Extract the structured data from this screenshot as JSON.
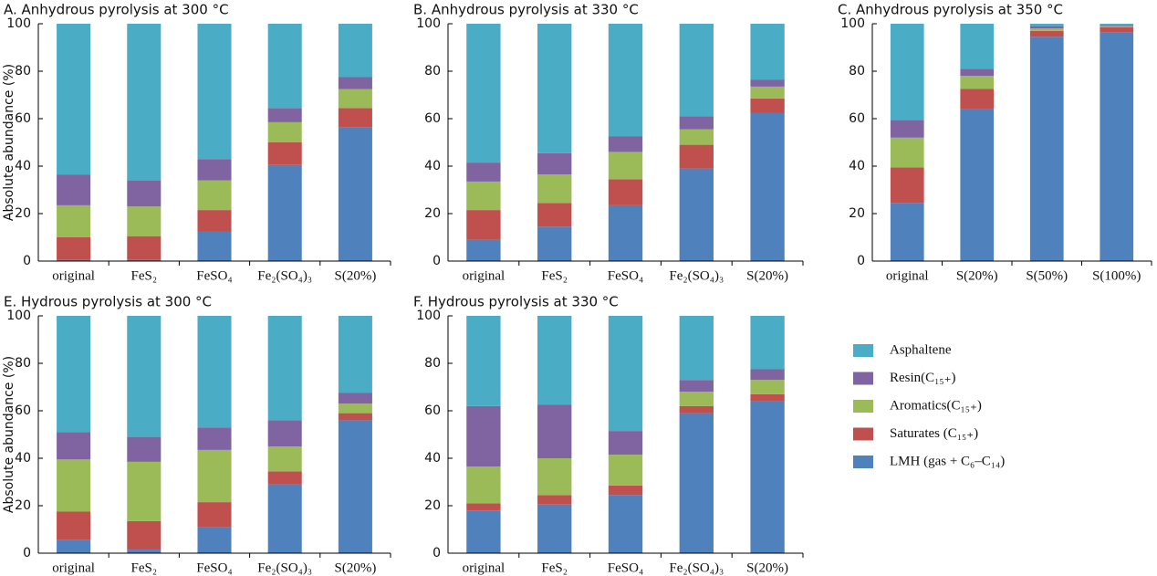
{
  "chart_data": [
    {
      "type": "bar",
      "stacked": true,
      "title": "A. Anhydrous pyrolysis  at 300 °C",
      "ylabel": "Absolute abundance (%)",
      "categories": [
        "original",
        "FeS₂",
        "FeSO₄",
        "Fe₂(SO₄)₃",
        "S(20%)"
      ],
      "series": [
        {
          "name": "LMH (gas + C₆–C₁₄)",
          "color": "#4f81bd",
          "values": [
            0.5,
            0.5,
            12.5,
            40.5,
            56.5
          ]
        },
        {
          "name": "Saturates (C₁₅₊)",
          "color": "#c0504d",
          "values": [
            9.5,
            10,
            9,
            9.5,
            8
          ]
        },
        {
          "name": "Aromatics(C₁₅₊)",
          "color": "#9bbb59",
          "values": [
            13.5,
            12.5,
            12.5,
            8.5,
            8
          ]
        },
        {
          "name": "Resin(C₁₅₊)",
          "color": "#8064a2",
          "values": [
            13,
            11,
            9,
            6,
            5
          ]
        },
        {
          "name": "Asphaltene",
          "color": "#4bacc6",
          "values": [
            63.5,
            66,
            57,
            35.5,
            22.5
          ]
        }
      ],
      "ylim": [
        0,
        100
      ],
      "yticks": [
        0,
        20,
        40,
        60,
        80,
        100
      ]
    },
    {
      "type": "bar",
      "stacked": true,
      "title": "B. Anhydrous pyrolysis  at 330 °C",
      "categories": [
        "original",
        "FeS₂",
        "FeSO₄",
        "Fe₂(SO₄)₃",
        "S(20%)"
      ],
      "series": [
        {
          "name": "LMH (gas + C₆–C₁₄)",
          "color": "#4f81bd",
          "values": [
            9,
            14.5,
            23.5,
            39,
            62.5
          ]
        },
        {
          "name": "Saturates (C₁₅₊)",
          "color": "#c0504d",
          "values": [
            12.5,
            10,
            11,
            10,
            6
          ]
        },
        {
          "name": "Aromatics(C₁₅₊)",
          "color": "#9bbb59",
          "values": [
            12,
            12,
            11.5,
            6.5,
            5
          ]
        },
        {
          "name": "Resin(C₁₅₊)",
          "color": "#8064a2",
          "values": [
            8,
            9,
            6.5,
            5.5,
            3
          ]
        },
        {
          "name": "Asphaltene",
          "color": "#4bacc6",
          "values": [
            58.5,
            54.5,
            47.5,
            39,
            23.5
          ]
        }
      ],
      "ylim": [
        0,
        100
      ],
      "yticks": [
        0,
        20,
        40,
        60,
        80,
        100
      ]
    },
    {
      "type": "bar",
      "stacked": true,
      "title": "C. Anhydrous pyrolysis  at 350 °C",
      "categories": [
        "original",
        "S(20%)",
        "S(50%)",
        "S(100%)"
      ],
      "series": [
        {
          "name": "LMH (gas + C₆–C₁₄)",
          "color": "#4f81bd",
          "values": [
            24.5,
            64,
            94.5,
            96.5
          ]
        },
        {
          "name": "Saturates (C₁₅₊)",
          "color": "#c0504d",
          "values": [
            15,
            8.5,
            2.5,
            2
          ]
        },
        {
          "name": "Aromatics(C₁₅₊)",
          "color": "#9bbb59",
          "values": [
            12.5,
            5.5,
            1,
            0.5
          ]
        },
        {
          "name": "Resin(C₁₅₊)",
          "color": "#8064a2",
          "values": [
            7.5,
            3,
            1,
            0.5
          ]
        },
        {
          "name": "Asphaltene",
          "color": "#4bacc6",
          "values": [
            40.5,
            19,
            1,
            0.5
          ]
        }
      ],
      "ylim": [
        0,
        100
      ],
      "yticks": [
        0,
        20,
        40,
        60,
        80,
        100
      ]
    },
    {
      "type": "bar",
      "stacked": true,
      "title": "E. Hydrous pyrolysis  at 300 °C",
      "ylabel": "Absolute abundance (%)",
      "categories": [
        "original",
        "FeS₂",
        "FeSO₄",
        "Fe₂(SO₄)₃",
        "S(20%)"
      ],
      "series": [
        {
          "name": "LMH (gas + C₆–C₁₄)",
          "color": "#4f81bd",
          "values": [
            5.5,
            1.5,
            11,
            29,
            56
          ]
        },
        {
          "name": "Saturates (C₁₅₊)",
          "color": "#c0504d",
          "values": [
            12,
            12,
            10.5,
            5.5,
            3
          ]
        },
        {
          "name": "Aromatics(C₁₅₊)",
          "color": "#9bbb59",
          "values": [
            22,
            25,
            22,
            10.5,
            4
          ]
        },
        {
          "name": "Resin(C₁₅₊)",
          "color": "#8064a2",
          "values": [
            11.5,
            10.5,
            9.5,
            11,
            4.5
          ]
        },
        {
          "name": "Asphaltene",
          "color": "#4bacc6",
          "values": [
            49,
            51,
            47,
            44,
            32.5
          ]
        }
      ],
      "ylim": [
        0,
        100
      ],
      "yticks": [
        0,
        20,
        40,
        60,
        80,
        100
      ]
    },
    {
      "type": "bar",
      "stacked": true,
      "title": "F. Hydrous pyrolysis  at 330 °C",
      "categories": [
        "original",
        "FeS₂",
        "FeSO₄",
        "Fe₂(SO₄)₃",
        "S(20%)"
      ],
      "series": [
        {
          "name": "LMH (gas + C₆–C₁₄)",
          "color": "#4f81bd",
          "values": [
            18,
            20.5,
            24.5,
            59,
            64
          ]
        },
        {
          "name": "Saturates (C₁₅₊)",
          "color": "#c0504d",
          "values": [
            3,
            4,
            4,
            3,
            3
          ]
        },
        {
          "name": "Aromatics(C₁₅₊)",
          "color": "#9bbb59",
          "values": [
            15.5,
            15.5,
            13,
            6,
            6
          ]
        },
        {
          "name": "Resin(C₁₅₊)",
          "color": "#8064a2",
          "values": [
            25.5,
            22.5,
            10,
            5,
            4.5
          ]
        },
        {
          "name": "Asphaltene",
          "color": "#4bacc6",
          "values": [
            38,
            37.5,
            48.5,
            27,
            22.5
          ]
        }
      ],
      "ylim": [
        0,
        100
      ],
      "yticks": [
        0,
        20,
        40,
        60,
        80,
        100
      ]
    }
  ]
}
